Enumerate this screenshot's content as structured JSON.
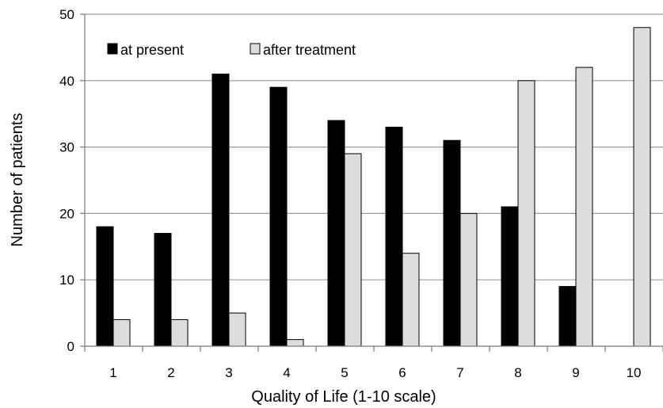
{
  "chart_data": {
    "type": "bar",
    "title": "",
    "xlabel": "Quality of Life (1-10 scale)",
    "ylabel": "Number of patients",
    "categories": [
      "1",
      "2",
      "3",
      "4",
      "5",
      "6",
      "7",
      "8",
      "9",
      "10"
    ],
    "series": [
      {
        "name": "at present",
        "color": "#000000",
        "values": [
          18,
          17,
          41,
          39,
          34,
          33,
          31,
          21,
          9,
          0
        ]
      },
      {
        "name": "after treatment",
        "color": "#dcdcdc",
        "values": [
          4,
          4,
          5,
          1,
          29,
          14,
          20,
          40,
          42,
          48
        ]
      }
    ],
    "ylim": [
      0,
      50
    ],
    "yticks": [
      "0",
      "10",
      "20",
      "30",
      "40",
      "50"
    ],
    "grid": true,
    "legend_position": "top-left"
  }
}
